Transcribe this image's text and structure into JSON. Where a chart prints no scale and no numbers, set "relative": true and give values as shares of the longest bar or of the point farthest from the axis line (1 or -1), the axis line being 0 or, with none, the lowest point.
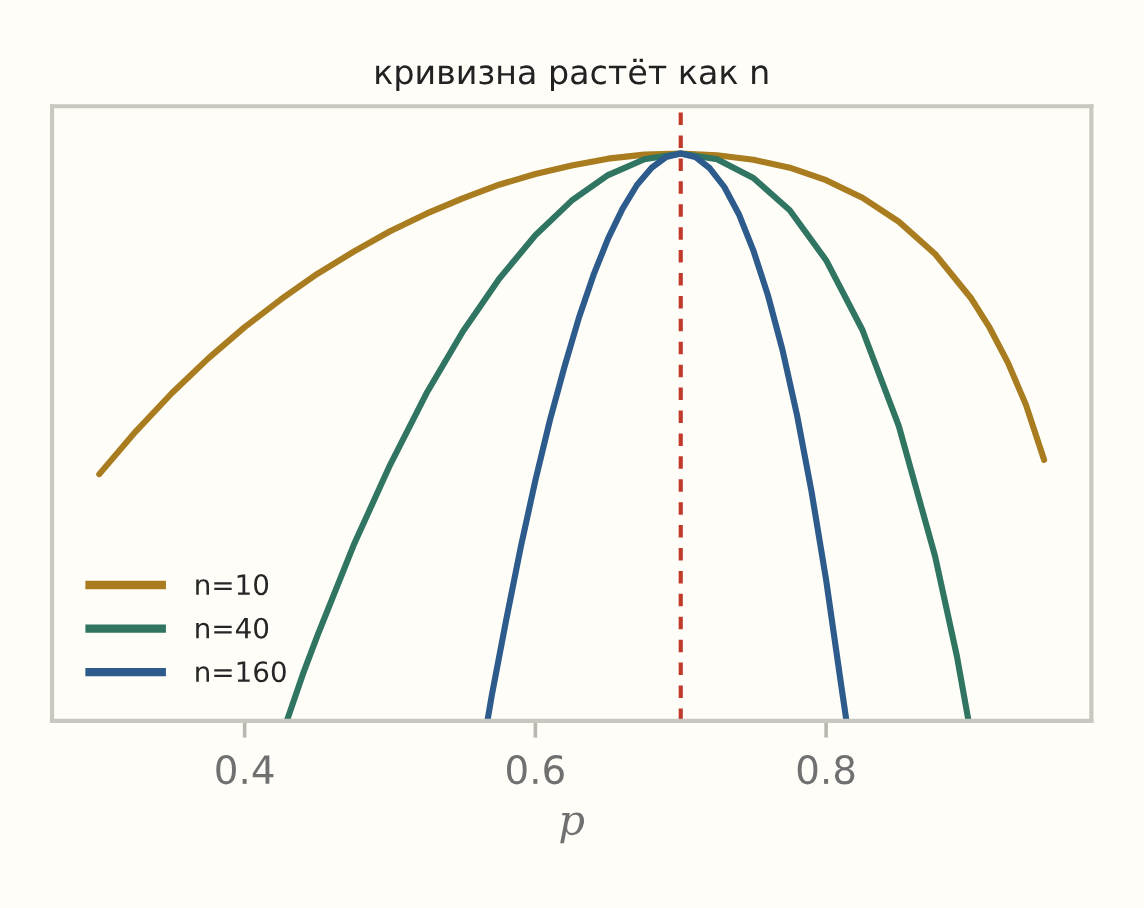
{
  "chart_data": {
    "type": "line",
    "title": "кривизна растёт как n",
    "xlabel": "p",
    "relative": true,
    "xlim": [
      0.2675,
      0.9825
    ],
    "xticks": [
      0.4,
      0.6,
      0.8
    ],
    "legend": "bottom left",
    "line_style": "solid",
    "series": [
      {
        "name": "n=10",
        "color": "#a87c1f",
        "x": [
          0.3,
          0.325,
          0.35,
          0.375,
          0.4,
          0.425,
          0.45,
          0.475,
          0.5,
          0.525,
          0.55,
          0.575,
          0.6,
          0.625,
          0.65,
          0.675,
          0.7,
          0.725,
          0.75,
          0.775,
          0.8,
          0.825,
          0.85,
          0.875,
          0.9,
          0.9125,
          0.925,
          0.9375,
          0.95
        ],
        "values": [
          0.435,
          0.51,
          0.578,
          0.639,
          0.694,
          0.743,
          0.788,
          0.827,
          0.863,
          0.894,
          0.921,
          0.945,
          0.964,
          0.979,
          0.991,
          0.998,
          1.0,
          0.997,
          0.989,
          0.975,
          0.953,
          0.922,
          0.88,
          0.823,
          0.744,
          0.693,
          0.632,
          0.557,
          0.46
        ]
      },
      {
        "name": "n=40",
        "color": "#2f7561",
        "x": [
          0.429,
          0.44,
          0.45,
          0.475,
          0.5,
          0.525,
          0.55,
          0.575,
          0.6,
          0.625,
          0.65,
          0.675,
          0.7,
          0.725,
          0.75,
          0.775,
          0.8,
          0.825,
          0.85,
          0.875,
          0.89,
          0.898
        ],
        "values": [
          0.0,
          0.082,
          0.15,
          0.31,
          0.451,
          0.577,
          0.686,
          0.779,
          0.856,
          0.917,
          0.962,
          0.99,
          1.0,
          0.99,
          0.957,
          0.9,
          0.812,
          0.689,
          0.52,
          0.29,
          0.114,
          0.0
        ]
      },
      {
        "name": "n=160",
        "color": "#2c5b8c",
        "x": [
          0.567,
          0.57,
          0.58,
          0.59,
          0.6,
          0.61,
          0.62,
          0.63,
          0.64,
          0.65,
          0.66,
          0.67,
          0.68,
          0.69,
          0.7,
          0.71,
          0.72,
          0.73,
          0.74,
          0.75,
          0.76,
          0.77,
          0.78,
          0.79,
          0.8,
          0.81,
          0.814
        ],
        "values": [
          0.0,
          0.045,
          0.179,
          0.307,
          0.424,
          0.53,
          0.624,
          0.711,
          0.786,
          0.85,
          0.903,
          0.945,
          0.975,
          0.994,
          1.0,
          0.994,
          0.974,
          0.941,
          0.893,
          0.829,
          0.75,
          0.654,
          0.539,
          0.404,
          0.249,
          0.07,
          0.0
        ]
      }
    ],
    "ref_lines": [
      {
        "axis": "x",
        "value": 0.7,
        "color": "#c0392b",
        "line_style": "dashed"
      }
    ]
  }
}
